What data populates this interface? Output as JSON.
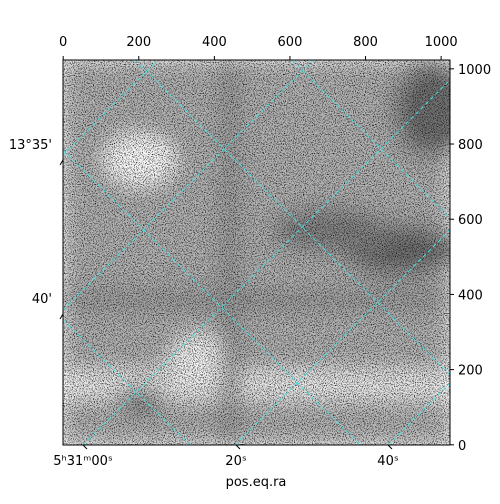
{
  "chart_data": {
    "type": "image",
    "xlim": [
      -0.5,
      1023.5
    ],
    "xticks": [
      0,
      200,
      400,
      600,
      800,
      1000
    ],
    "ylim": [
      -0.5,
      1023.5
    ],
    "yticks": [
      0,
      200,
      400,
      600,
      800,
      1000
    ],
    "ra_ticks": [
      "5ʰ31ᵐ00ˢ",
      "20ˢ",
      "40ˢ"
    ],
    "dec_ticks": [
      "13°35'",
      "40'"
    ],
    "xlabel": "pos.eq.ra"
  }
}
